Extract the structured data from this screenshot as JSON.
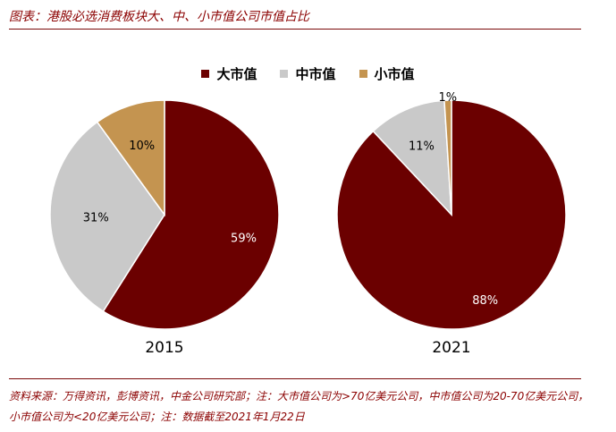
{
  "header": {
    "title": "图表：港股必选消费板块大、中、小市值公司市值占比"
  },
  "source": {
    "line1": "资料来源：万得资讯，彭博资讯，中金公司研究部；注：大市值公司为>70亿美元公司，中市值公司为20-70亿美元公司，",
    "line2": "小市值公司为<20亿美元公司；注：数据截至2021年1月22日"
  },
  "colors": {
    "large": "#6B0000",
    "mid": "#C9C9C9",
    "small": "#C49450"
  },
  "chart_data": [
    {
      "type": "pie",
      "xlabel": "2015",
      "legend": "top-center",
      "slices": [
        {
          "name": "大市值",
          "value": 59,
          "label": "59%"
        },
        {
          "name": "中市值",
          "value": 31,
          "label": "31%"
        },
        {
          "name": "小市值",
          "value": 10,
          "label": "10%"
        }
      ]
    },
    {
      "type": "pie",
      "xlabel": "2021",
      "legend": "top-center",
      "slices": [
        {
          "name": "大市值",
          "value": 88,
          "label": "88%"
        },
        {
          "name": "中市值",
          "value": 11,
          "label": "11%"
        },
        {
          "name": "小市值",
          "value": 1,
          "label": "1%"
        }
      ]
    }
  ]
}
